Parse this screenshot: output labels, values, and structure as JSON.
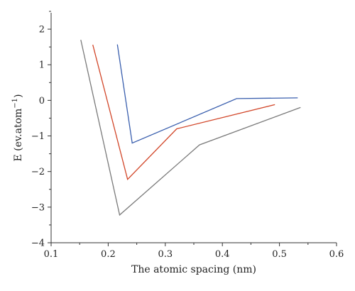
{
  "chart_data": {
    "type": "line",
    "xlabel": "The atomic spacing (nm)",
    "ylabel_main": "E (ev.atom",
    "ylabel_sup": "−1",
    "ylabel_close": ")",
    "xlim": [
      0.1,
      0.6
    ],
    "ylim": [
      -4,
      2.5
    ],
    "x_ticks": [
      0.1,
      0.2,
      0.3,
      0.4,
      0.5,
      0.6
    ],
    "x_tick_labels": [
      "0.1",
      "0.2",
      "0.3",
      "0.4",
      "0.5",
      "0.6"
    ],
    "y_ticks": [
      -4,
      -3,
      -2,
      -1,
      0,
      1,
      2
    ],
    "y_tick_labels": [
      "−4",
      "−3",
      "−2",
      "−1",
      "0",
      "1",
      "2"
    ],
    "grid": false,
    "legend": "none",
    "series": [
      {
        "color": "#7a7a7a",
        "points": [
          [
            0.152,
            1.7
          ],
          [
            0.22,
            -3.22
          ],
          [
            0.36,
            -1.25
          ],
          [
            0.537,
            -0.2
          ]
        ]
      },
      {
        "color": "#d2472a",
        "points": [
          [
            0.173,
            1.56
          ],
          [
            0.234,
            -2.22
          ],
          [
            0.32,
            -0.8
          ],
          [
            0.492,
            -0.12
          ]
        ]
      },
      {
        "color": "#3a5fae",
        "points": [
          [
            0.216,
            1.57
          ],
          [
            0.242,
            -1.2
          ],
          [
            0.425,
            0.05
          ],
          [
            0.532,
            0.07
          ]
        ]
      }
    ]
  }
}
